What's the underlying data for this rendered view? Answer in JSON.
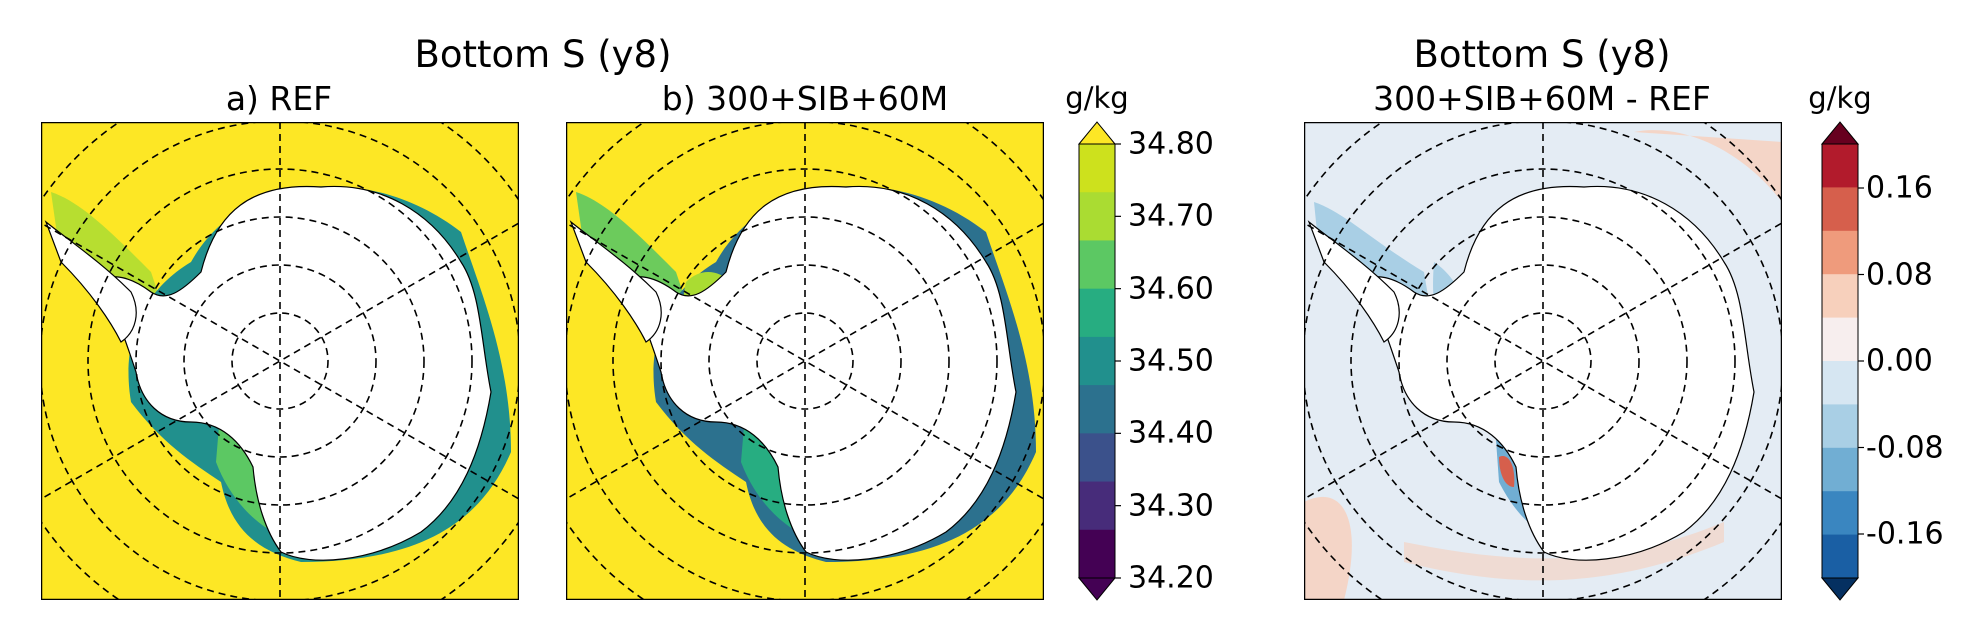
{
  "figure": {
    "left_title": "Bottom S (y8)",
    "right_title": "Bottom S (y8)",
    "panels": [
      {
        "id": "a",
        "subtitle": "a) REF"
      },
      {
        "id": "b",
        "subtitle": "b) 300+SIB+60M"
      },
      {
        "id": "c",
        "subtitle": "300+SIB+60M - REF"
      }
    ]
  },
  "colorbar_salinity": {
    "unit": "g/kg",
    "ticks": [
      "34.80",
      "34.70",
      "34.60",
      "34.50",
      "34.40",
      "34.30",
      "34.20"
    ],
    "colors": [
      "#440154",
      "#472c7a",
      "#3b518b",
      "#2c718e",
      "#21908d",
      "#27ad81",
      "#5cc863",
      "#aadc32",
      "#cde11d"
    ],
    "over_color": "#fde725",
    "under_color": "#440154"
  },
  "colorbar_difference": {
    "unit": "g/kg",
    "ticks": [
      "0.16",
      "0.08",
      "0.00",
      "-0.08",
      "-0.16"
    ],
    "colors": [
      "#1a5fa4",
      "#3a86c0",
      "#71aed3",
      "#a9cfe5",
      "#d6e6f2",
      "#f7eeee",
      "#f7d0bc",
      "#ef9b7c",
      "#d65f4c",
      "#b21b2c"
    ],
    "over_color": "#67001f",
    "under_color": "#053061"
  },
  "map": {
    "ocean_color_abs": "#fde725",
    "ocean_color_diff": "#e4ecf4",
    "land_color": "#ffffff",
    "shelf_fresh_color": "#3b9c8c",
    "shelf_mid_color": "#8fd14f",
    "grid_style": "dashed"
  }
}
